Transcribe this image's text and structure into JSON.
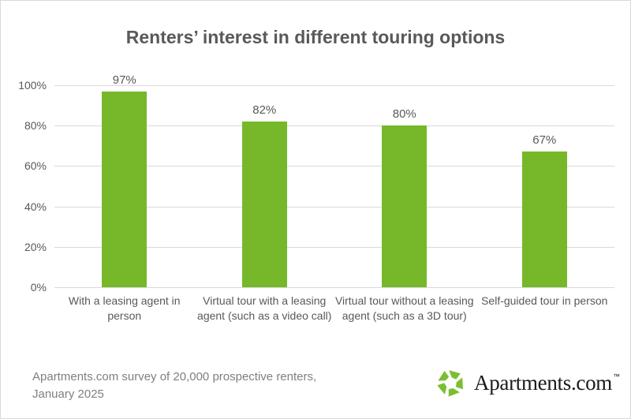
{
  "page": {
    "title": "Renters’ interest in different touring options"
  },
  "source_note": {
    "line1": "Apartments.com survey of 20,000 prospective renters,",
    "line2": "January 2025"
  },
  "logo": {
    "icon": "apartments-pinwheel-icon",
    "text": "Apartments.com",
    "trademark": "™"
  },
  "colors": {
    "bar_green": "#76B82A",
    "logo_green": "#7CBE31",
    "title_gray": "#595959",
    "axis_gray": "#595959",
    "note_gray": "#7F7F7F",
    "gridline": "#D9D9D9",
    "logo_text": "#1A1A1A"
  },
  "chart_data": {
    "type": "bar",
    "title": "Renters’ interest in different touring options",
    "categories": [
      "With a leasing agent in person",
      "Virtual tour with a leasing agent (such as a video call)",
      "Virtual tour without a leasing agent (such as a 3D tour)",
      "Self-guided tour in person"
    ],
    "values": [
      97,
      82,
      80,
      67
    ],
    "value_labels": [
      "97%",
      "82%",
      "80%",
      "67%"
    ],
    "xlabel": "",
    "ylabel": "",
    "ylim": [
      0,
      100
    ],
    "yticks": [
      {
        "value": 0,
        "label": "0%"
      },
      {
        "value": 20,
        "label": "20%"
      },
      {
        "value": 40,
        "label": "40%"
      },
      {
        "value": 60,
        "label": "60%"
      },
      {
        "value": 80,
        "label": "80%"
      },
      {
        "value": 100,
        "label": "100%"
      }
    ],
    "grid": "horizontal",
    "legend": "none",
    "bar_color": "#76B82A"
  }
}
